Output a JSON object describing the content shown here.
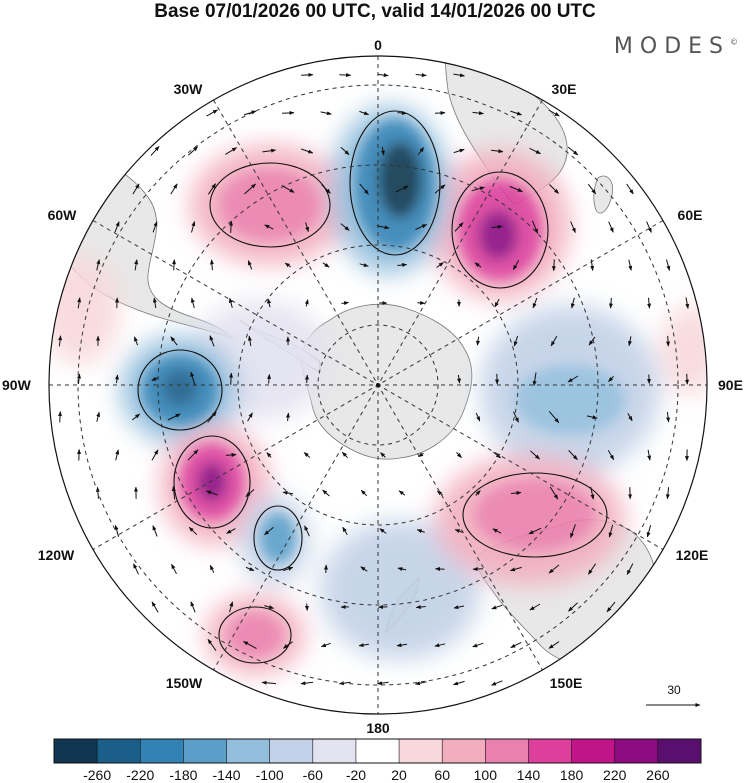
{
  "title": "Base 07/01/2026 00 UTC, valid 14/01/2026 00 UTC",
  "logo": "MODES",
  "logo_mark": "©",
  "longitude_labels": {
    "top": "0",
    "bottom": "180",
    "left": "90W",
    "right": "90E",
    "w30": "30W",
    "e30": "30E",
    "w60": "60W",
    "e60": "60E",
    "w120": "120W",
    "e120": "120E",
    "w150": "150W",
    "e150": "150E"
  },
  "vector_scale_label": "30",
  "colorbar": {
    "colors": [
      "#10374f",
      "#1a5e8a",
      "#3282b5",
      "#5a9fc9",
      "#93bedc",
      "#c2d1e7",
      "#e3e2f0",
      "#ffffff",
      "#f8d8dc",
      "#f2adbf",
      "#ea80ad",
      "#dc3f9c",
      "#c01488",
      "#8c0b82",
      "#5a0f6e"
    ],
    "ticks": [
      "-260",
      "-220",
      "-180",
      "-140",
      "-100",
      "-60",
      "-20",
      "20",
      "60",
      "100",
      "140",
      "180",
      "220",
      "260"
    ]
  },
  "colors": {
    "land": "#e8e8e8",
    "coast": "#777777",
    "grid": "#333333"
  }
}
